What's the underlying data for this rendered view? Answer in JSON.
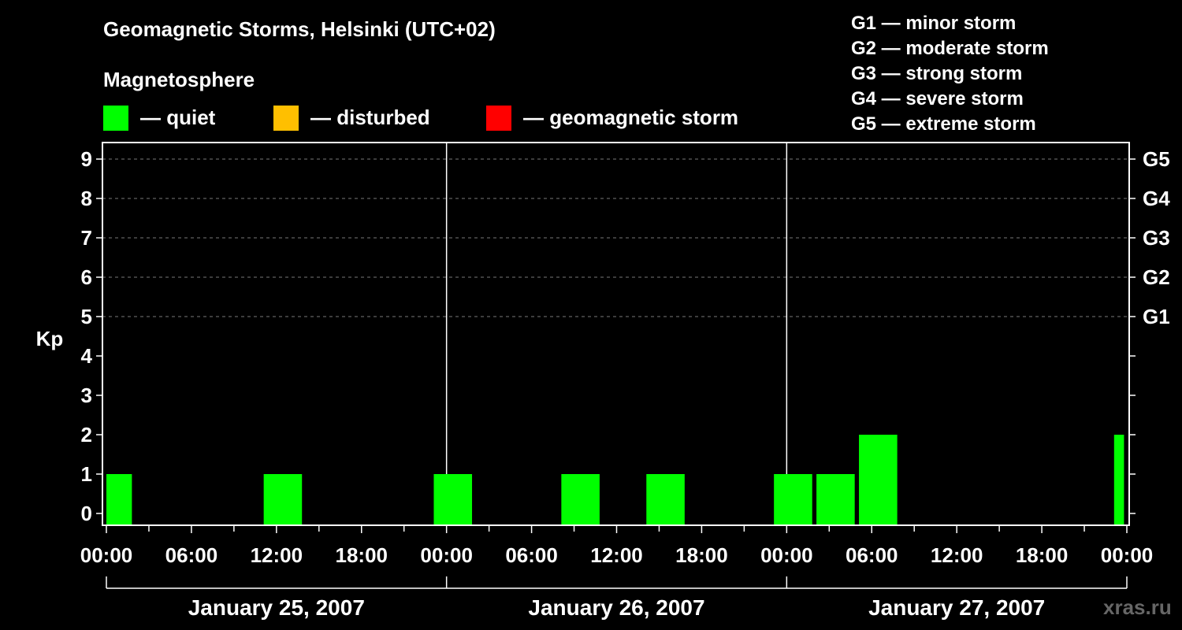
{
  "title": "Geomagnetic Storms, Helsinki (UTC+02)",
  "magnetosphere": {
    "title": "Magnetosphere",
    "legend": [
      {
        "label": "— quiet",
        "color": "#00ff00"
      },
      {
        "label": "— disturbed",
        "color": "#ffbf00"
      },
      {
        "label": "— geomagnetic storm",
        "color": "#ff0000"
      }
    ]
  },
  "storm_scale": [
    "G1 — minor storm",
    "G2 — moderate storm",
    "G3 — strong storm",
    "G4 — severe storm",
    "G5 — extreme storm"
  ],
  "watermark": "xras.ru",
  "chart_data": {
    "type": "bar",
    "ylabel": "Kp",
    "ylim": [
      0,
      9
    ],
    "yticks": [
      "0",
      "1",
      "2",
      "3",
      "4",
      "5",
      "6",
      "7",
      "8",
      "9"
    ],
    "right_ticks": [
      {
        "kp": 5,
        "label": "G1"
      },
      {
        "kp": 6,
        "label": "G2"
      },
      {
        "kp": 7,
        "label": "G3"
      },
      {
        "kp": 8,
        "label": "G4"
      },
      {
        "kp": 9,
        "label": "G5"
      }
    ],
    "grid": true,
    "x_hours_range": [
      0,
      72
    ],
    "x_tick_labels": [
      {
        "hour": 0,
        "label": "00:00"
      },
      {
        "hour": 6,
        "label": "06:00"
      },
      {
        "hour": 12,
        "label": "12:00"
      },
      {
        "hour": 18,
        "label": "18:00"
      },
      {
        "hour": 24,
        "label": "00:00"
      },
      {
        "hour": 30,
        "label": "06:00"
      },
      {
        "hour": 36,
        "label": "12:00"
      },
      {
        "hour": 42,
        "label": "18:00"
      },
      {
        "hour": 48,
        "label": "00:00"
      },
      {
        "hour": 54,
        "label": "06:00"
      },
      {
        "hour": 60,
        "label": "12:00"
      },
      {
        "hour": 66,
        "label": "18:00"
      },
      {
        "hour": 72,
        "label": "00:00"
      }
    ],
    "days": [
      "January 25, 2007",
      "January 26, 2007",
      "January 27, 2007"
    ],
    "series": [
      {
        "values": [
          {
            "start": 0,
            "end": 1.8,
            "kp": 1,
            "status": "quiet"
          },
          {
            "start": 11.1,
            "end": 13.8,
            "kp": 1,
            "status": "quiet"
          },
          {
            "start": 23.1,
            "end": 25.8,
            "kp": 1,
            "status": "quiet"
          },
          {
            "start": 32.1,
            "end": 34.8,
            "kp": 1,
            "status": "quiet"
          },
          {
            "start": 38.1,
            "end": 40.8,
            "kp": 1,
            "status": "quiet"
          },
          {
            "start": 47.1,
            "end": 49.8,
            "kp": 1,
            "status": "quiet"
          },
          {
            "start": 50.1,
            "end": 52.8,
            "kp": 1,
            "status": "quiet"
          },
          {
            "start": 53.1,
            "end": 55.8,
            "kp": 2,
            "status": "quiet"
          },
          {
            "start": 71.1,
            "end": 71.8,
            "kp": 2,
            "status": "quiet"
          }
        ]
      }
    ]
  }
}
